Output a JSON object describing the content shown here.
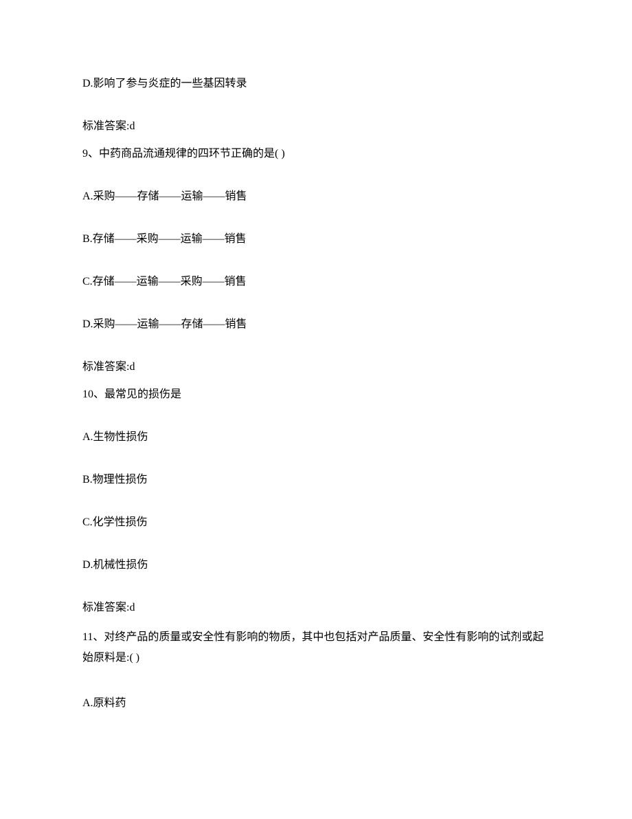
{
  "q8": {
    "option_d": "D.影响了参与炎症的一些基因转录",
    "answer": "标准答案:d"
  },
  "q9": {
    "stem": "9、中药商品流通规律的四环节正确的是( )",
    "option_a": "A.采购——存储——运输——销售",
    "option_b": "B.存储——采购——运输——销售",
    "option_c": "C.存储——运输——采购——销售",
    "option_d": "D.采购——运输——存储——销售",
    "answer": "标准答案:d"
  },
  "q10": {
    "stem": "10、最常见的损伤是",
    "option_a": "A.生物性损伤",
    "option_b": "B.物理性损伤",
    "option_c": "C.化学性损伤",
    "option_d": "D.机械性损伤",
    "answer": "标准答案:d"
  },
  "q11": {
    "stem": "11、对终产品的质量或安全性有影响的物质，其中也包括对产品质量、安全性有影响的试剂或起始原料是:( )",
    "option_a": "A.原料药"
  }
}
